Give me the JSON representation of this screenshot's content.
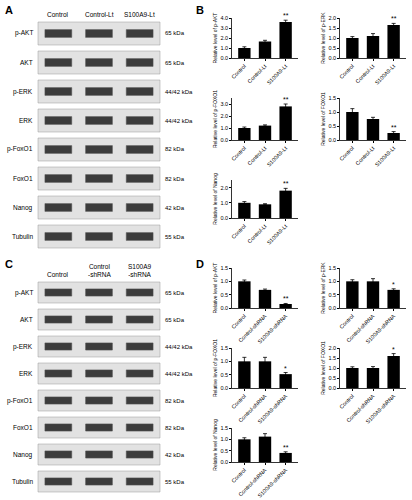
{
  "blots": [
    {
      "panel": "A",
      "lanes": [
        "Control",
        "Control-Lt",
        "S100A9-Lt"
      ],
      "rows": [
        {
          "label": "p-AKT",
          "size": "65 kDa"
        },
        {
          "label": "AKT",
          "size": "65 kDa"
        },
        {
          "label": "p-ERK",
          "size": "44/42 kDa"
        },
        {
          "label": "ERK",
          "size": "44/42 kDa"
        },
        {
          "label": "p-FoxO1",
          "size": "82 kDa"
        },
        {
          "label": "FoxO1",
          "size": "82 kDa"
        },
        {
          "label": "Nanog",
          "size": "42 kDa"
        },
        {
          "label": "Tubulin",
          "size": "55 kDa"
        }
      ]
    },
    {
      "panel": "C",
      "lanes": [
        "Control",
        "Control\n-shRNA",
        "S100A9\n-shRNA"
      ],
      "rows": [
        {
          "label": "p-AKT",
          "size": "65 kDa"
        },
        {
          "label": "AKT",
          "size": "65 kDa"
        },
        {
          "label": "p-ERK",
          "size": "44/42 kDa"
        },
        {
          "label": "ERK",
          "size": "44/42 kDa"
        },
        {
          "label": "p-FoxO1",
          "size": "82 kDa"
        },
        {
          "label": "FoxO1",
          "size": "82 kDa"
        },
        {
          "label": "Nanog",
          "size": "42 kDa"
        },
        {
          "label": "Tubulin",
          "size": "55 kDa"
        }
      ]
    }
  ],
  "chart_data": [
    {
      "panel": "B",
      "type": "bar",
      "ylabel": "Relative level of p-AKT",
      "categories": [
        "Control",
        "Control-Lt",
        "S100A9-Lt"
      ],
      "values": [
        1.0,
        1.65,
        3.6
      ],
      "errors": [
        0.12,
        0.12,
        0.18
      ],
      "significance": [
        null,
        null,
        "**"
      ],
      "color": "#000000",
      "ylim": [
        0,
        4
      ],
      "yticks": [
        {
          "value": 0,
          "label": "0.0"
        },
        {
          "value": 1,
          "label": "1.0"
        },
        {
          "value": 2,
          "label": "2.0"
        },
        {
          "value": 3,
          "label": "3.0"
        },
        {
          "value": 4,
          "label": "4.0"
        }
      ]
    },
    {
      "type": "bar",
      "ylabel": "Relative level of p-ERK",
      "categories": [
        "Control",
        "Control-Lt",
        "S100A9-Lt"
      ],
      "values": [
        1.0,
        1.1,
        1.65
      ],
      "errors": [
        0.07,
        0.12,
        0.08
      ],
      "significance": [
        null,
        null,
        "**"
      ],
      "color": "#000000",
      "ylim": [
        0,
        2
      ],
      "yticks": [
        {
          "value": 0,
          "label": "0.0"
        },
        {
          "value": 0.5,
          "label": "0.5"
        },
        {
          "value": 1,
          "label": "1.0"
        },
        {
          "value": 1.5,
          "label": "1.5"
        },
        {
          "value": 2,
          "label": "2.0"
        }
      ]
    },
    {
      "type": "bar",
      "ylabel": "Relative level of p-FOXO1",
      "categories": [
        "Control",
        "Control-Lt",
        "S100A9-Lt"
      ],
      "values": [
        1.0,
        1.2,
        2.8
      ],
      "errors": [
        0.08,
        0.06,
        0.2
      ],
      "significance": [
        null,
        null,
        "**"
      ],
      "color": "#000000",
      "ylim": [
        0,
        3.5
      ],
      "yticks": [
        {
          "value": 0,
          "label": "0.0"
        },
        {
          "value": 1,
          "label": "1.0"
        },
        {
          "value": 2,
          "label": "2.0"
        },
        {
          "value": 3,
          "label": "3.0"
        }
      ]
    },
    {
      "type": "bar",
      "ylabel": "Relative level of FOXO1",
      "categories": [
        "Control",
        "Control-Lt",
        "S100A9-Lt"
      ],
      "values": [
        1.0,
        0.75,
        0.25
      ],
      "errors": [
        0.12,
        0.06,
        0.05
      ],
      "significance": [
        null,
        null,
        "**"
      ],
      "color": "#000000",
      "ylim": [
        0,
        1.5
      ],
      "yticks": [
        {
          "value": 0,
          "label": "0.0"
        },
        {
          "value": 0.5,
          "label": "0.5"
        },
        {
          "value": 1,
          "label": "1.0"
        },
        {
          "value": 1.5,
          "label": "1.5"
        }
      ]
    },
    {
      "type": "bar",
      "ylabel": "Relative level of Nanog",
      "categories": [
        "Control",
        "Control-Lt",
        "S100A9-Lt"
      ],
      "values": [
        1.0,
        0.9,
        1.8
      ],
      "errors": [
        0.08,
        0.04,
        0.15
      ],
      "significance": [
        null,
        null,
        "**"
      ],
      "color": "#000000",
      "ylim": [
        0,
        2.5
      ],
      "yticks": [
        {
          "value": 0,
          "label": "0.0"
        },
        {
          "value": 1,
          "label": "1.0"
        },
        {
          "value": 2,
          "label": "2.0"
        }
      ]
    },
    {
      "panel": "D",
      "type": "bar",
      "ylabel": "Relative level of p-AKT",
      "categories": [
        "Control",
        "Control-shRNA",
        "S100A9-shRNA"
      ],
      "values": [
        1.0,
        0.68,
        0.15
      ],
      "errors": [
        0.05,
        0.03,
        0.02
      ],
      "significance": [
        null,
        null,
        "**"
      ],
      "color": "#000000",
      "ylim": [
        0,
        1.5
      ],
      "yticks": [
        {
          "value": 0,
          "label": "0.0"
        },
        {
          "value": 0.5,
          "label": "0.5"
        },
        {
          "value": 1,
          "label": "1.0"
        },
        {
          "value": 1.5,
          "label": "1.5"
        }
      ]
    },
    {
      "type": "bar",
      "ylabel": "Relative level of p-ERK",
      "categories": [
        "Control",
        "Control-shRNA",
        "S100A9-shRNA"
      ],
      "values": [
        1.0,
        1.0,
        0.68
      ],
      "errors": [
        0.06,
        0.1,
        0.04
      ],
      "significance": [
        null,
        null,
        "*"
      ],
      "color": "#000000",
      "ylim": [
        0,
        1.5
      ],
      "yticks": [
        {
          "value": 0,
          "label": "0.0"
        },
        {
          "value": 0.5,
          "label": "0.5"
        },
        {
          "value": 1,
          "label": "1.0"
        },
        {
          "value": 1.5,
          "label": "1.5"
        }
      ]
    },
    {
      "type": "bar",
      "ylabel": "Relative level of p-FOXO1",
      "categories": [
        "Control",
        "Control-shRNA",
        "S100A9-shRNA"
      ],
      "values": [
        1.0,
        1.0,
        0.52
      ],
      "errors": [
        0.15,
        0.15,
        0.06
      ],
      "significance": [
        null,
        null,
        "*"
      ],
      "color": "#000000",
      "ylim": [
        0,
        1.5
      ],
      "yticks": [
        {
          "value": 0,
          "label": "0.0"
        },
        {
          "value": 0.5,
          "label": "0.5"
        },
        {
          "value": 1,
          "label": "1.0"
        },
        {
          "value": 1.5,
          "label": "1.5"
        }
      ]
    },
    {
      "type": "bar",
      "ylabel": "Relative level of FOXO1",
      "categories": [
        "Control",
        "Control-shRNA",
        "S100A9-shRNA"
      ],
      "values": [
        1.0,
        1.0,
        1.6
      ],
      "errors": [
        0.06,
        0.07,
        0.12
      ],
      "significance": [
        null,
        null,
        "*"
      ],
      "color": "#000000",
      "ylim": [
        0,
        2
      ],
      "yticks": [
        {
          "value": 0,
          "label": "0.0"
        },
        {
          "value": 0.5,
          "label": "0.5"
        },
        {
          "value": 1,
          "label": "1.0"
        },
        {
          "value": 1.5,
          "label": "1.5"
        },
        {
          "value": 2,
          "label": "2.0"
        }
      ]
    },
    {
      "type": "bar",
      "ylabel": "Relative level of Nanog",
      "categories": [
        "Control",
        "Control-shRNA",
        "S100A9-shRNA"
      ],
      "values": [
        1.0,
        1.12,
        0.4
      ],
      "errors": [
        0.07,
        0.13,
        0.05
      ],
      "significance": [
        null,
        null,
        "**"
      ],
      "color": "#000000",
      "ylim": [
        0,
        1.5
      ],
      "yticks": [
        {
          "value": 0,
          "label": "0.0"
        },
        {
          "value": 0.5,
          "label": "0.5"
        },
        {
          "value": 1,
          "label": "1.0"
        },
        {
          "value": 1.5,
          "label": "1.5"
        }
      ]
    }
  ]
}
